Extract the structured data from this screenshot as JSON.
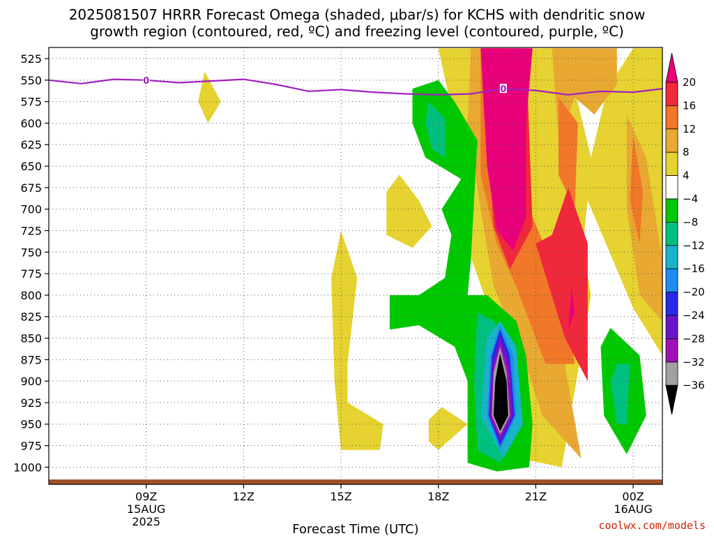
{
  "chart_data": {
    "type": "heatmap",
    "title_line1": "2025081507 HRRR Forecast Omega (shaded, μbar/s) for KCHS with dendritic snow",
    "title_line2": "growth region (contoured, red, ºC) and freezing level (contoured, purple, ºC)",
    "xlabel": "Forecast Time (UTC)",
    "credit": "coolwx.com/models",
    "y_axis": {
      "unit": "hPa",
      "range": [
        1020,
        512
      ],
      "tick_values": [
        525,
        550,
        575,
        600,
        625,
        650,
        675,
        700,
        725,
        750,
        775,
        800,
        825,
        850,
        875,
        900,
        925,
        950,
        975,
        1000
      ],
      "tick_labels": [
        "525",
        "550",
        "575",
        "600",
        "625",
        "650",
        "675",
        "700",
        "725",
        "750",
        "775",
        "800",
        "825",
        "850",
        "875",
        "900",
        "925",
        "950",
        "975",
        "1000"
      ]
    },
    "x_axis": {
      "unit": "hours UTC from 2025-08-15 00Z",
      "range": [
        6,
        24.9
      ],
      "tick_values": [
        9,
        12,
        15,
        18,
        21,
        24
      ],
      "tick_labels": [
        [
          "09Z",
          "15AUG",
          "2025"
        ],
        [
          "12Z"
        ],
        [
          "15Z"
        ],
        [
          "18Z"
        ],
        [
          "21Z"
        ],
        [
          "00Z",
          "16AUG"
        ]
      ]
    },
    "colorbar": {
      "labels": [
        "20",
        "16",
        "12",
        "8",
        "4",
        "−4",
        "−8",
        "−12",
        "−16",
        "−20",
        "−24",
        "−28",
        "−32",
        "−36"
      ],
      "colors": [
        "#e8007a",
        "#f0283c",
        "#f07828",
        "#e8a832",
        "#e6d230",
        "#ffffff",
        "#00c800",
        "#00c080",
        "#18b4c8",
        "#1e8cf0",
        "#2828e6",
        "#6a14c8",
        "#a010b8",
        "#a0a0a0",
        "#000000"
      ]
    },
    "freezing_level": {
      "label": "0",
      "color": "#a020c0",
      "points": [
        [
          6.0,
          550
        ],
        [
          7.0,
          554
        ],
        [
          8.0,
          549
        ],
        [
          9.0,
          550
        ],
        [
          10.0,
          553
        ],
        [
          11.0,
          551
        ],
        [
          12.0,
          549
        ],
        [
          13.0,
          555
        ],
        [
          14.0,
          563
        ],
        [
          15.0,
          561
        ],
        [
          16.0,
          564
        ],
        [
          17.0,
          566
        ],
        [
          18.0,
          567
        ],
        [
          19.0,
          566
        ],
        [
          20.0,
          560
        ],
        [
          21.0,
          562
        ],
        [
          22.0,
          567
        ],
        [
          23.0,
          563
        ],
        [
          24.0,
          564
        ],
        [
          24.9,
          560
        ]
      ]
    },
    "omega_regions": [
      {
        "name": "omega-yellow-left-tall",
        "color": "#e6d230",
        "points": [
          [
            18.0,
            513
          ],
          [
            21.9,
            513
          ],
          [
            22.7,
            640
          ],
          [
            23.2,
            560
          ],
          [
            24.0,
            513
          ],
          [
            24.9,
            513
          ],
          [
            24.9,
            870
          ],
          [
            24.0,
            815
          ],
          [
            22.6,
            690
          ],
          [
            22.3,
            795
          ],
          [
            21.0,
            945
          ],
          [
            19.6,
            820
          ],
          [
            18.9,
            745
          ],
          [
            19.0,
            660
          ],
          [
            18.5,
            600
          ]
        ]
      },
      {
        "name": "omega-yellow-right-strip",
        "color": "#e6d230",
        "points": [
          [
            21.2,
            513
          ],
          [
            21.4,
            513
          ],
          [
            22.7,
            800
          ],
          [
            21.8,
            1000
          ],
          [
            20.5,
            990
          ],
          [
            21.0,
            870
          ],
          [
            21.5,
            700
          ]
        ]
      },
      {
        "name": "omega-orange-main",
        "color": "#e8a832",
        "points": [
          [
            19.0,
            513
          ],
          [
            20.2,
            513
          ],
          [
            20.2,
            700
          ],
          [
            20.8,
            760
          ],
          [
            21.4,
            800
          ],
          [
            21.8,
            860
          ],
          [
            22.4,
            990
          ],
          [
            21.2,
            940
          ],
          [
            20.6,
            870
          ],
          [
            19.7,
            790
          ],
          [
            19.3,
            700
          ],
          [
            18.9,
            600
          ]
        ]
      },
      {
        "name": "omega-orange-right",
        "color": "#e8a832",
        "points": [
          [
            21.5,
            513
          ],
          [
            23.5,
            513
          ],
          [
            23.5,
            555
          ],
          [
            22.8,
            590
          ],
          [
            22.2,
            570
          ],
          [
            21.7,
            620
          ]
        ]
      },
      {
        "name": "omega-orange-far-right",
        "color": "#e8a832",
        "points": [
          [
            23.8,
            590
          ],
          [
            24.4,
            640
          ],
          [
            24.9,
            760
          ],
          [
            24.9,
            830
          ],
          [
            24.2,
            800
          ],
          [
            23.8,
            700
          ]
        ]
      },
      {
        "name": "omega-darkorange-core",
        "color": "#f07828",
        "points": [
          [
            19.3,
            513
          ],
          [
            20.0,
            513
          ],
          [
            20.8,
            700
          ],
          [
            21.9,
            800
          ],
          [
            22.2,
            880
          ],
          [
            21.3,
            880
          ],
          [
            20.4,
            790
          ],
          [
            19.8,
            740
          ],
          [
            19.3,
            660
          ]
        ]
      },
      {
        "name": "omega-darkorange-upper",
        "color": "#f07828",
        "points": [
          [
            21.7,
            570
          ],
          [
            22.3,
            600
          ],
          [
            22.2,
            700
          ],
          [
            21.7,
            660
          ]
        ]
      },
      {
        "name": "omega-darkorange-far-right",
        "color": "#f07828",
        "points": [
          [
            24.0,
            615
          ],
          [
            24.3,
            680
          ],
          [
            24.2,
            740
          ],
          [
            23.9,
            690
          ]
        ]
      },
      {
        "name": "omega-red-core",
        "color": "#f0283c",
        "points": [
          [
            19.5,
            513
          ],
          [
            20.7,
            513
          ],
          [
            20.9,
            720
          ],
          [
            20.2,
            770
          ],
          [
            19.7,
            720
          ],
          [
            19.5,
            600
          ]
        ]
      },
      {
        "name": "omega-red-lower",
        "color": "#f0283c",
        "points": [
          [
            21.5,
            730
          ],
          [
            22.0,
            675
          ],
          [
            22.6,
            740
          ],
          [
            22.6,
            900
          ],
          [
            21.9,
            850
          ],
          [
            21.0,
            740
          ]
        ]
      },
      {
        "name": "omega-magenta-max",
        "color": "#e8007a",
        "points": [
          [
            19.3,
            513
          ],
          [
            20.9,
            513
          ],
          [
            20.7,
            600
          ],
          [
            20.7,
            710
          ],
          [
            20.3,
            748
          ],
          [
            19.8,
            725
          ],
          [
            19.5,
            650
          ]
        ]
      },
      {
        "name": "omega-magenta-lower",
        "color": "#e8007a",
        "points": [
          [
            22.1,
            790
          ],
          [
            22.2,
            820
          ],
          [
            22.0,
            840
          ]
        ]
      },
      {
        "name": "omega-yellow-small-top",
        "color": "#e6d230",
        "points": [
          [
            10.8,
            540
          ],
          [
            11.3,
            575
          ],
          [
            10.9,
            600
          ],
          [
            10.6,
            575
          ]
        ]
      },
      {
        "name": "omega-yellow-mid-blob",
        "color": "#e6d230",
        "points": [
          [
            16.8,
            660
          ],
          [
            17.4,
            690
          ],
          [
            17.8,
            720
          ],
          [
            17.2,
            745
          ],
          [
            16.4,
            730
          ],
          [
            16.4,
            680
          ]
        ]
      },
      {
        "name": "omega-yellow-lower-left",
        "color": "#e6d230",
        "points": [
          [
            15.0,
            725
          ],
          [
            15.5,
            780
          ],
          [
            15.2,
            880
          ],
          [
            15.2,
            925
          ],
          [
            16.3,
            950
          ],
          [
            16.2,
            980
          ],
          [
            15.0,
            980
          ],
          [
            14.8,
            900
          ],
          [
            14.7,
            780
          ]
        ]
      },
      {
        "name": "omega-yellow-small-bottom",
        "color": "#e6d230",
        "points": [
          [
            17.7,
            945
          ],
          [
            18.1,
            930
          ],
          [
            18.9,
            950
          ],
          [
            18.0,
            980
          ],
          [
            17.7,
            970
          ]
        ]
      },
      {
        "name": "omega-green-large",
        "color": "#00c800",
        "points": [
          [
            18.0,
            550
          ],
          [
            18.5,
            575
          ],
          [
            19.2,
            620
          ],
          [
            19.1,
            690
          ],
          [
            19.0,
            760
          ],
          [
            18.9,
            800
          ],
          [
            19.5,
            800
          ],
          [
            20.4,
            830
          ],
          [
            20.7,
            870
          ],
          [
            20.9,
            950
          ],
          [
            20.8,
            1000
          ],
          [
            19.8,
            1005
          ],
          [
            18.9,
            995
          ],
          [
            18.9,
            900
          ],
          [
            18.5,
            860
          ],
          [
            17.4,
            835
          ],
          [
            16.5,
            840
          ],
          [
            16.5,
            800
          ],
          [
            17.4,
            800
          ],
          [
            18.2,
            780
          ],
          [
            18.4,
            730
          ],
          [
            18.1,
            700
          ],
          [
            18.7,
            665
          ],
          [
            17.6,
            640
          ],
          [
            17.2,
            600
          ],
          [
            17.2,
            560
          ]
        ]
      },
      {
        "name": "omega-green-right-blob",
        "color": "#00c800",
        "points": [
          [
            23.3,
            838
          ],
          [
            24.2,
            870
          ],
          [
            24.4,
            940
          ],
          [
            23.8,
            985
          ],
          [
            23.1,
            940
          ],
          [
            23.0,
            860
          ]
        ]
      },
      {
        "name": "omega-teal-upper",
        "color": "#00c080",
        "points": [
          [
            17.7,
            575
          ],
          [
            18.2,
            595
          ],
          [
            18.2,
            640
          ],
          [
            17.8,
            630
          ],
          [
            17.6,
            600
          ]
        ]
      },
      {
        "name": "omega-teal-lower",
        "color": "#00c080",
        "points": [
          [
            19.2,
            820
          ],
          [
            19.7,
            830
          ],
          [
            20.0,
            850
          ],
          [
            20.3,
            870
          ],
          [
            20.5,
            950
          ],
          [
            19.9,
            995
          ],
          [
            19.2,
            980
          ],
          [
            19.1,
            900
          ]
        ]
      },
      {
        "name": "omega-teal-right",
        "color": "#00c080",
        "points": [
          [
            23.5,
            880
          ],
          [
            23.9,
            880
          ],
          [
            23.8,
            950
          ],
          [
            23.5,
            950
          ],
          [
            23.3,
            900
          ]
        ]
      },
      {
        "name": "omega-cyan-lower",
        "color": "#18b4c8",
        "points": [
          [
            19.9,
            830
          ],
          [
            20.4,
            860
          ],
          [
            20.6,
            950
          ],
          [
            20.0,
            990
          ],
          [
            19.3,
            940
          ],
          [
            19.5,
            850
          ]
        ]
      },
      {
        "name": "omega-blue-lower",
        "color": "#1e8cf0",
        "points": [
          [
            19.9,
            835
          ],
          [
            20.3,
            870
          ],
          [
            20.4,
            940
          ],
          [
            19.9,
            980
          ],
          [
            19.5,
            940
          ],
          [
            19.6,
            870
          ]
        ]
      },
      {
        "name": "omega-darkblue-lower",
        "color": "#2828e6",
        "points": [
          [
            19.9,
            840
          ],
          [
            20.2,
            870
          ],
          [
            20.35,
            940
          ],
          [
            19.9,
            975
          ],
          [
            19.55,
            940
          ],
          [
            19.65,
            870
          ]
        ]
      },
      {
        "name": "omega-purple-lower",
        "color": "#6a14c8",
        "points": [
          [
            19.9,
            848
          ],
          [
            20.2,
            880
          ],
          [
            20.3,
            940
          ],
          [
            19.9,
            970
          ],
          [
            19.55,
            940
          ],
          [
            19.65,
            880
          ]
        ]
      },
      {
        "name": "omega-violet-lower",
        "color": "#a010b8",
        "points": [
          [
            19.9,
            855
          ],
          [
            20.15,
            885
          ],
          [
            20.25,
            940
          ],
          [
            19.9,
            966
          ],
          [
            19.6,
            940
          ],
          [
            19.7,
            885
          ]
        ]
      },
      {
        "name": "omega-gray-lower",
        "color": "#a0a0a0",
        "points": [
          [
            19.9,
            860
          ],
          [
            20.1,
            890
          ],
          [
            20.2,
            940
          ],
          [
            19.9,
            962
          ],
          [
            19.65,
            940
          ],
          [
            19.7,
            890
          ]
        ]
      },
      {
        "name": "omega-black-min",
        "color": "#000000",
        "points": [
          [
            19.9,
            868
          ],
          [
            20.1,
            900
          ],
          [
            20.15,
            940
          ],
          [
            19.9,
            958
          ],
          [
            19.7,
            940
          ],
          [
            19.75,
            900
          ]
        ]
      }
    ]
  }
}
